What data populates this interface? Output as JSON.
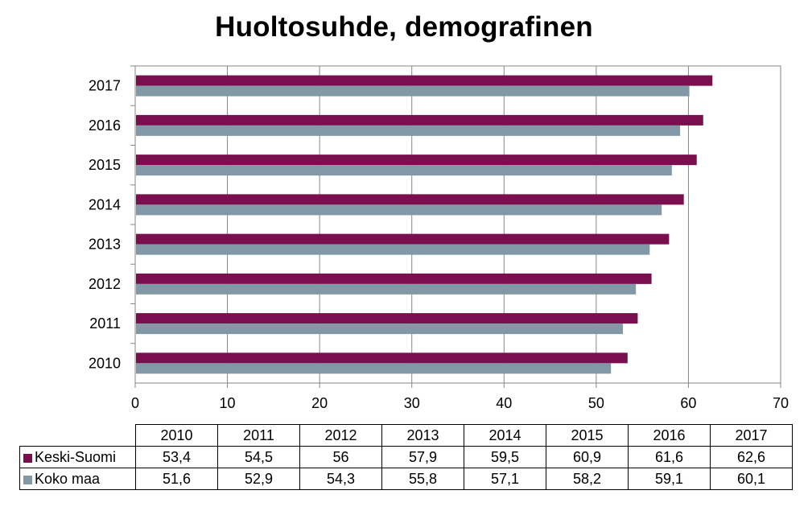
{
  "chart_data": {
    "type": "bar",
    "orientation": "horizontal",
    "title": "Huoltosuhde, demografinen",
    "categories": [
      "2010",
      "2011",
      "2012",
      "2013",
      "2014",
      "2015",
      "2016",
      "2017"
    ],
    "series": [
      {
        "name": "Keski-Suomi",
        "color": "#7a0f4f",
        "values": [
          53.4,
          54.5,
          56,
          57.9,
          59.5,
          60.9,
          61.6,
          62.6
        ],
        "labels": [
          "53,4",
          "54,5",
          "56",
          "57,9",
          "59,5",
          "60,9",
          "61,6",
          "62,6"
        ]
      },
      {
        "name": "Koko maa",
        "color": "#8199a6",
        "values": [
          51.6,
          52.9,
          54.3,
          55.8,
          57.1,
          58.2,
          59.1,
          60.1
        ],
        "labels": [
          "51,6",
          "52,9",
          "54,3",
          "55,8",
          "57,1",
          "58,2",
          "59,1",
          "60,1"
        ]
      }
    ],
    "xlim": [
      0,
      70
    ],
    "xticks": [
      "0",
      "10",
      "20",
      "30",
      "40",
      "50",
      "60",
      "70"
    ],
    "grid": true,
    "legend": "data-table"
  }
}
